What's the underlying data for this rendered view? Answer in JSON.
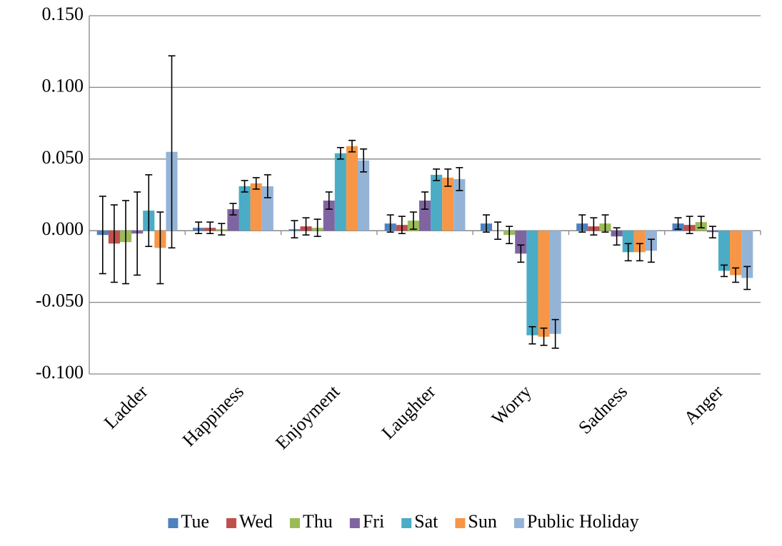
{
  "chart_data": {
    "type": "bar",
    "categories": [
      "Ladder",
      "Happiness",
      "Enjoyment",
      "Laughter",
      "Worry",
      "Sadness",
      "Anger"
    ],
    "series": [
      {
        "name": "Tue",
        "color": "#4f81bd",
        "values": [
          -0.003,
          0.002,
          0.001,
          0.005,
          0.005,
          0.005,
          0.005
        ],
        "errors": [
          0.027,
          0.004,
          0.006,
          0.006,
          0.006,
          0.006,
          0.004
        ]
      },
      {
        "name": "Wed",
        "color": "#c0504d",
        "values": [
          -0.009,
          0.002,
          0.003,
          0.004,
          0.0,
          0.003,
          0.004
        ],
        "errors": [
          0.027,
          0.004,
          0.006,
          0.006,
          0.006,
          0.006,
          0.006
        ]
      },
      {
        "name": "Thu",
        "color": "#9bbb59",
        "values": [
          -0.008,
          0.001,
          0.002,
          0.007,
          -0.003,
          0.005,
          0.006
        ],
        "errors": [
          0.029,
          0.004,
          0.006,
          0.006,
          0.006,
          0.006,
          0.004
        ]
      },
      {
        "name": "Fri",
        "color": "#8064a2",
        "values": [
          -0.002,
          0.015,
          0.021,
          0.021,
          -0.016,
          -0.004,
          -0.001
        ],
        "errors": [
          0.029,
          0.004,
          0.006,
          0.006,
          0.006,
          0.006,
          0.004
        ]
      },
      {
        "name": "Sat",
        "color": "#4bacc6",
        "values": [
          0.014,
          0.031,
          0.054,
          0.039,
          -0.073,
          -0.015,
          -0.028
        ],
        "errors": [
          0.025,
          0.004,
          0.004,
          0.004,
          0.006,
          0.006,
          0.004
        ]
      },
      {
        "name": "Sun",
        "color": "#f79646",
        "values": [
          -0.012,
          0.033,
          0.059,
          0.037,
          -0.074,
          -0.015,
          -0.031
        ],
        "errors": [
          0.025,
          0.004,
          0.004,
          0.006,
          0.006,
          0.006,
          0.005
        ]
      },
      {
        "name": "Public Holiday",
        "color": "#95b3d7",
        "values": [
          0.055,
          0.031,
          0.049,
          0.036,
          -0.072,
          -0.014,
          -0.033
        ],
        "errors": [
          0.067,
          0.008,
          0.008,
          0.008,
          0.01,
          0.008,
          0.008
        ]
      }
    ],
    "ylim": [
      -0.1,
      0.15
    ],
    "yticks": [
      {
        "value": -0.1,
        "label": "-0.100"
      },
      {
        "value": -0.05,
        "label": "-0.050"
      },
      {
        "value": 0,
        "label": "0.000"
      },
      {
        "value": 0.05,
        "label": "0.050"
      },
      {
        "value": 0.1,
        "label": "0.100"
      },
      {
        "value": 0.15,
        "label": "0.150"
      }
    ],
    "grid": true,
    "legend": "bottom"
  }
}
